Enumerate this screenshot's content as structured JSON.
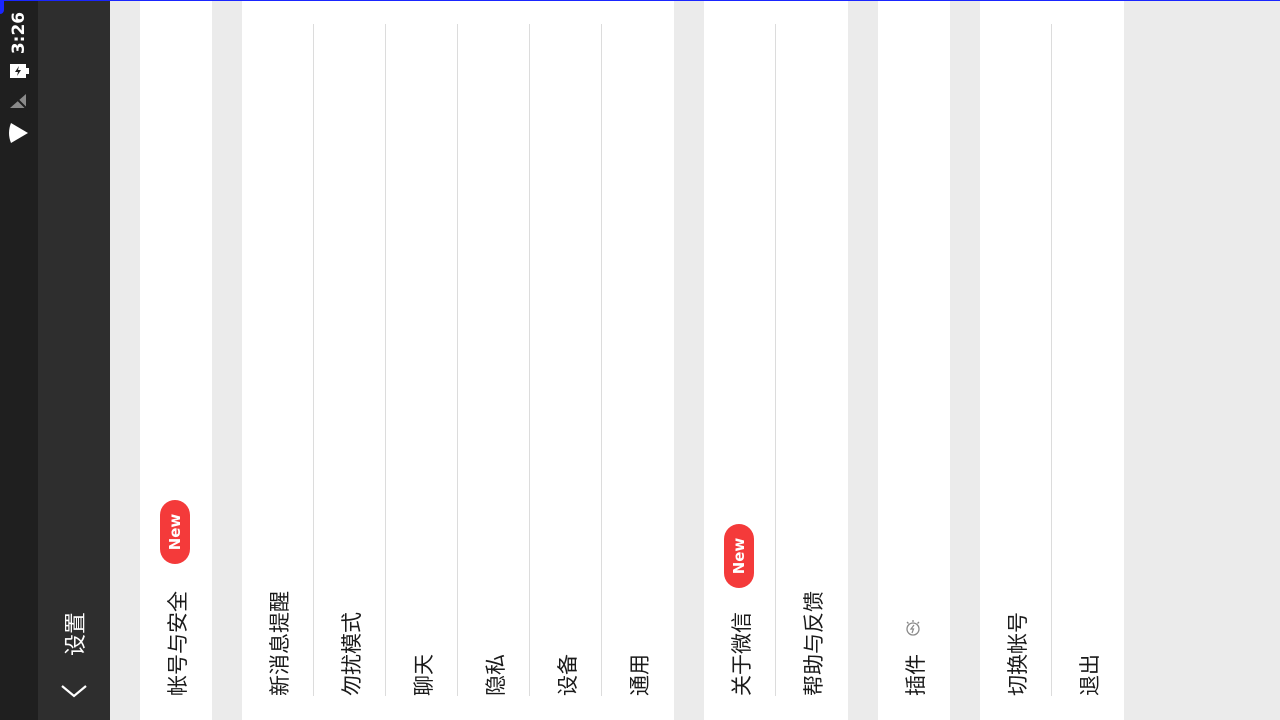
{
  "status_bar": {
    "time": "3:26",
    "icons": [
      "battery-charging-icon",
      "no-sim-icon",
      "wifi-icon"
    ]
  },
  "header": {
    "title": "设置",
    "back_icon": "chevron-back-icon"
  },
  "groups": [
    {
      "items": [
        {
          "label": "帐号与安全",
          "badge": "New"
        }
      ]
    },
    {
      "items": [
        {
          "label": "新消息提醒"
        },
        {
          "label": "勿扰模式"
        },
        {
          "label": "聊天"
        },
        {
          "label": "隐私"
        },
        {
          "label": "设备"
        },
        {
          "label": "通用"
        }
      ]
    },
    {
      "items": [
        {
          "label": "关于微信",
          "badge": "New"
        },
        {
          "label": "帮助与反馈"
        }
      ]
    },
    {
      "items": [
        {
          "label": "插件",
          "icon": "plugin-icon"
        }
      ]
    },
    {
      "items": [
        {
          "label": "切换帐号"
        },
        {
          "label": "退出"
        }
      ]
    }
  ],
  "colors": {
    "badge": "#f43a3a",
    "header_bg": "#2e2e2e",
    "status_bg": "#1f1f1f",
    "page_bg": "#ebebeb"
  }
}
